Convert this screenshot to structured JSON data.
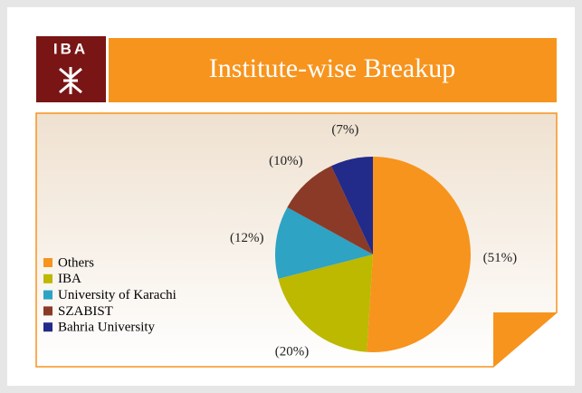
{
  "logo": {
    "text": "IBA"
  },
  "chart_data": {
    "type": "pie",
    "title": "Institute-wise Breakup",
    "categories": [
      "Others",
      "IBA",
      "University of Karachi",
      "SZABIST",
      "Bahria University"
    ],
    "values": [
      51,
      20,
      12,
      10,
      7
    ],
    "value_labels": [
      "(51%)",
      "(20%)",
      "(12%)",
      "(10%)",
      "(7%)"
    ],
    "colors": [
      "#f7941d",
      "#bdb800",
      "#2ea3c4",
      "#8a3a26",
      "#222a8a"
    ],
    "legend": "left"
  }
}
